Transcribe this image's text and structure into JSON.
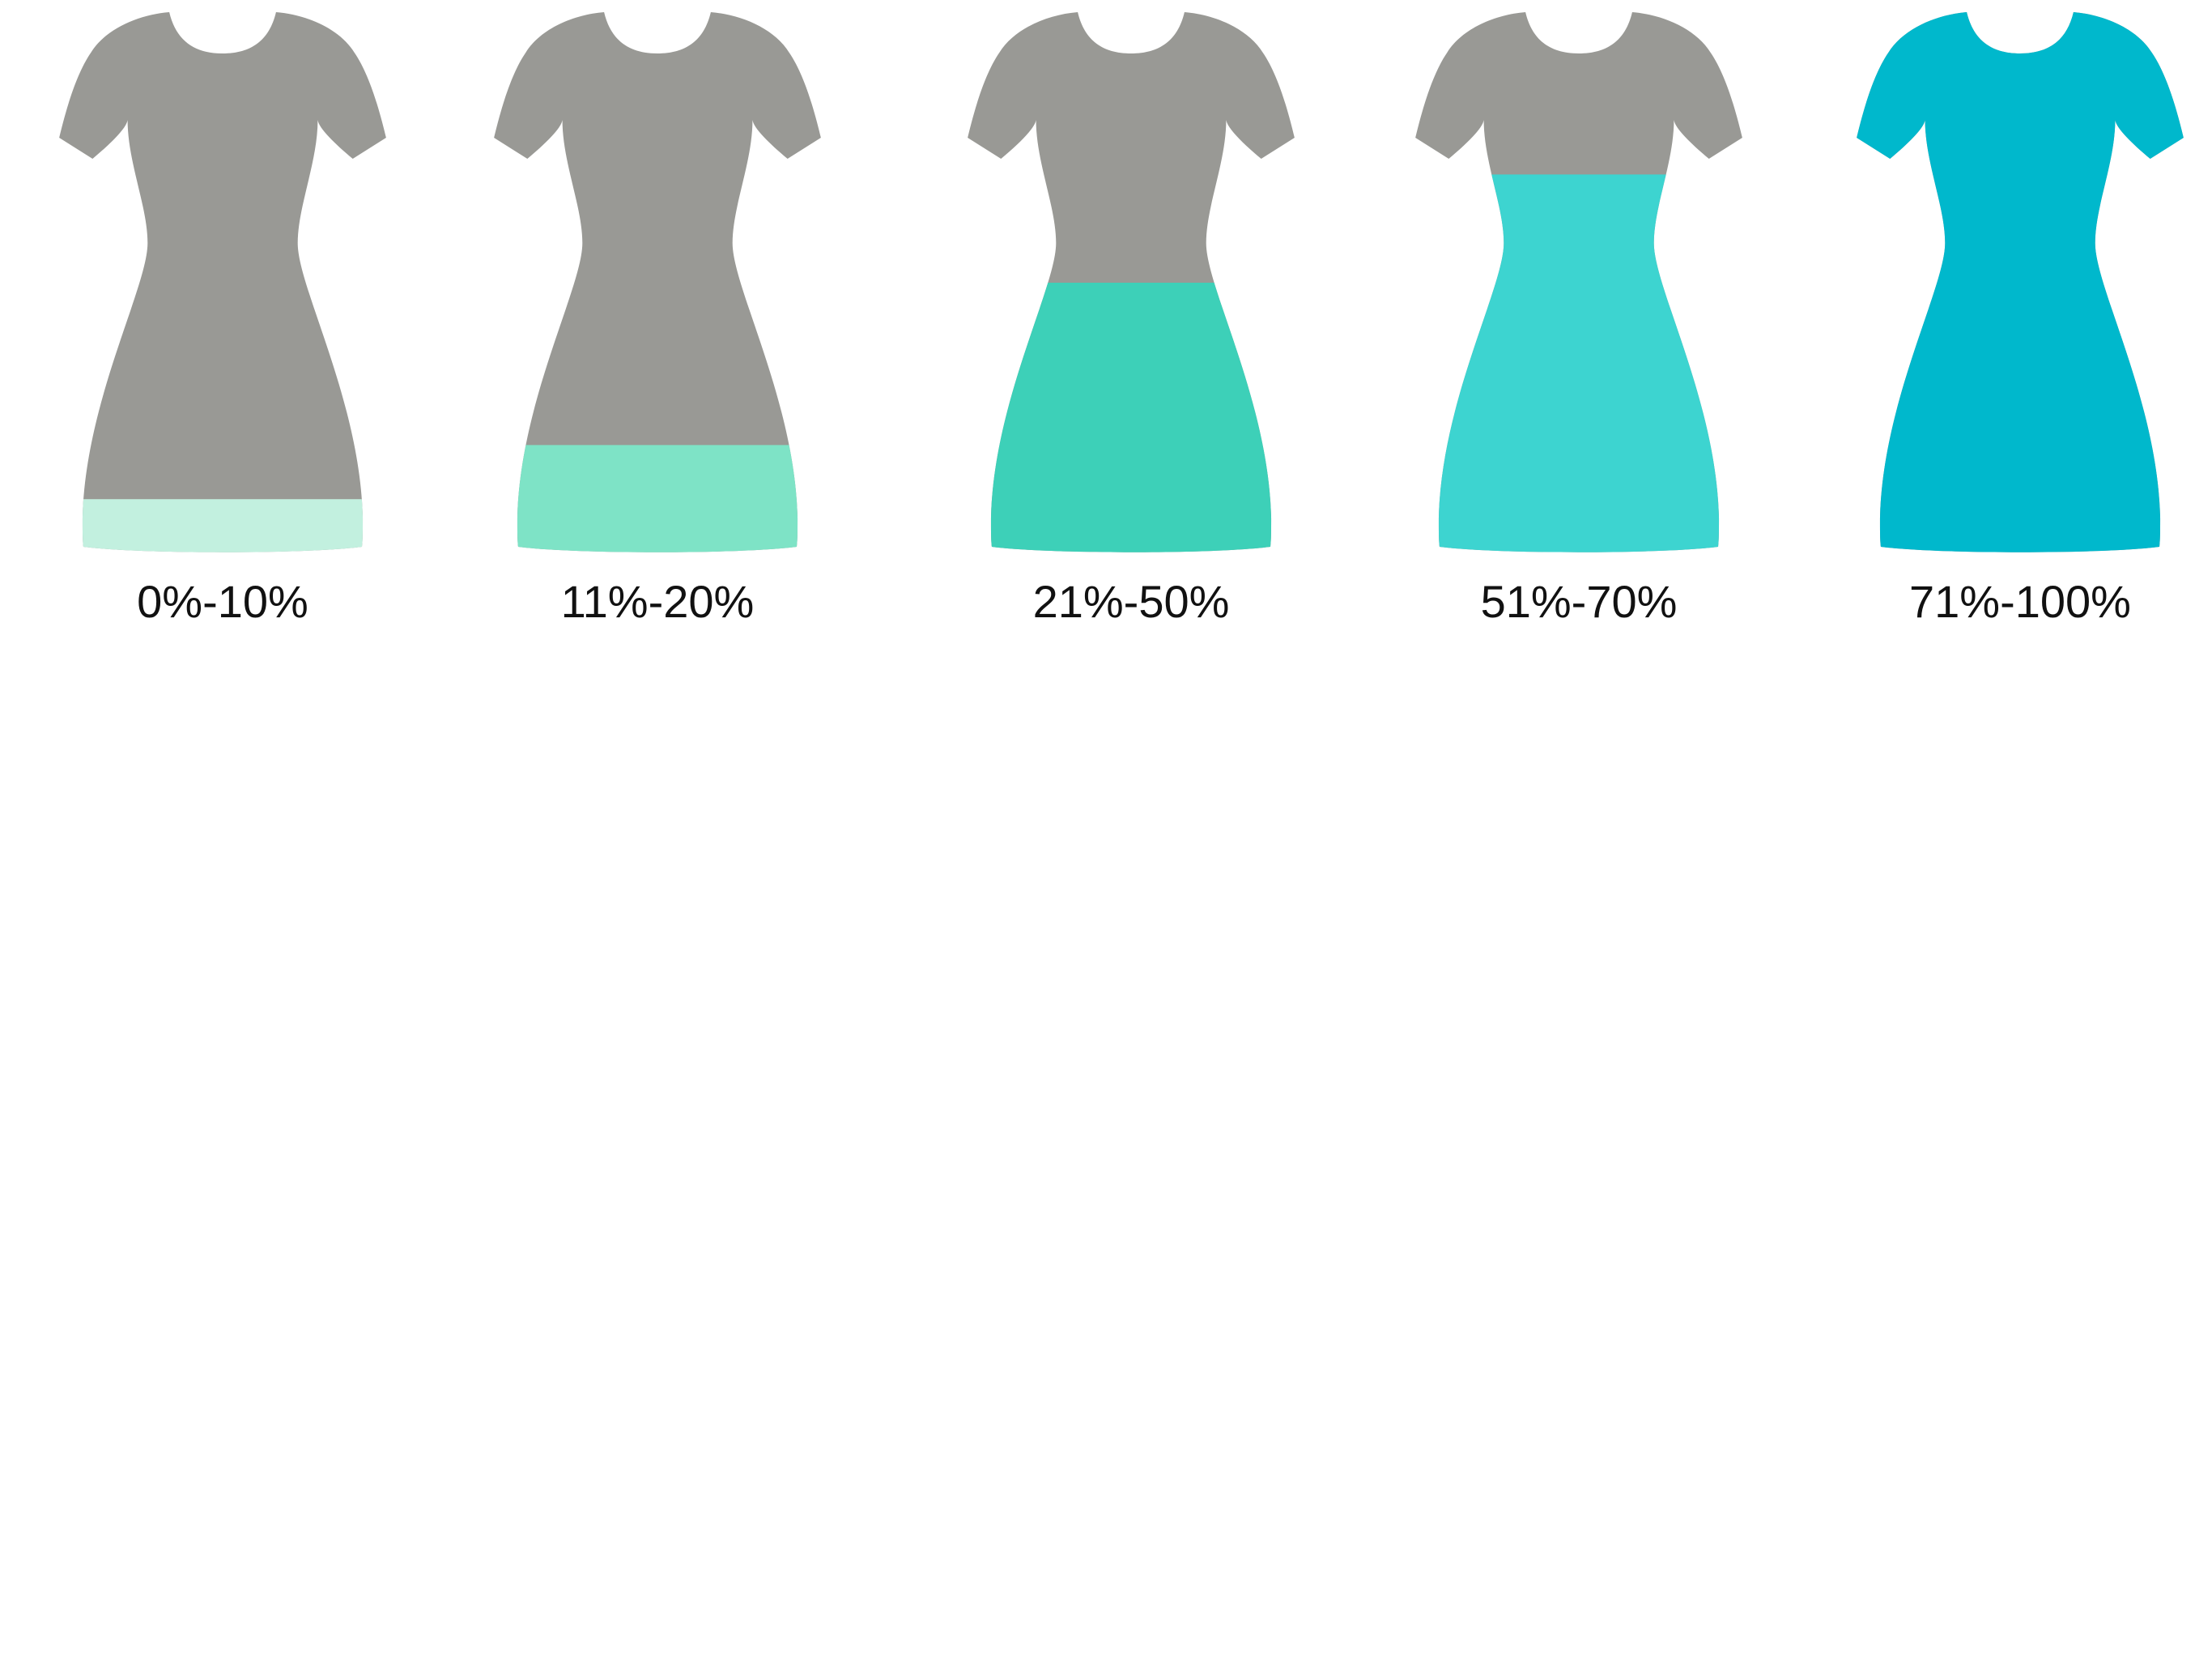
{
  "colors": {
    "unfilled": "#999995",
    "background": "#ffffff"
  },
  "dresses": [
    {
      "label": "0%-10%",
      "fill_fraction": 0.1,
      "color": "#c2f0df"
    },
    {
      "label": "11%-20%",
      "fill_fraction": 0.2,
      "color": "#7ee3c6"
    },
    {
      "label": "21%-50%",
      "fill_fraction": 0.5,
      "color": "#3dd0b8"
    },
    {
      "label": "51%-70%",
      "fill_fraction": 0.7,
      "color": "#3dd4d0"
    },
    {
      "label": "71%-100%",
      "fill_fraction": 1.0,
      "color": "#00b8cc"
    }
  ]
}
